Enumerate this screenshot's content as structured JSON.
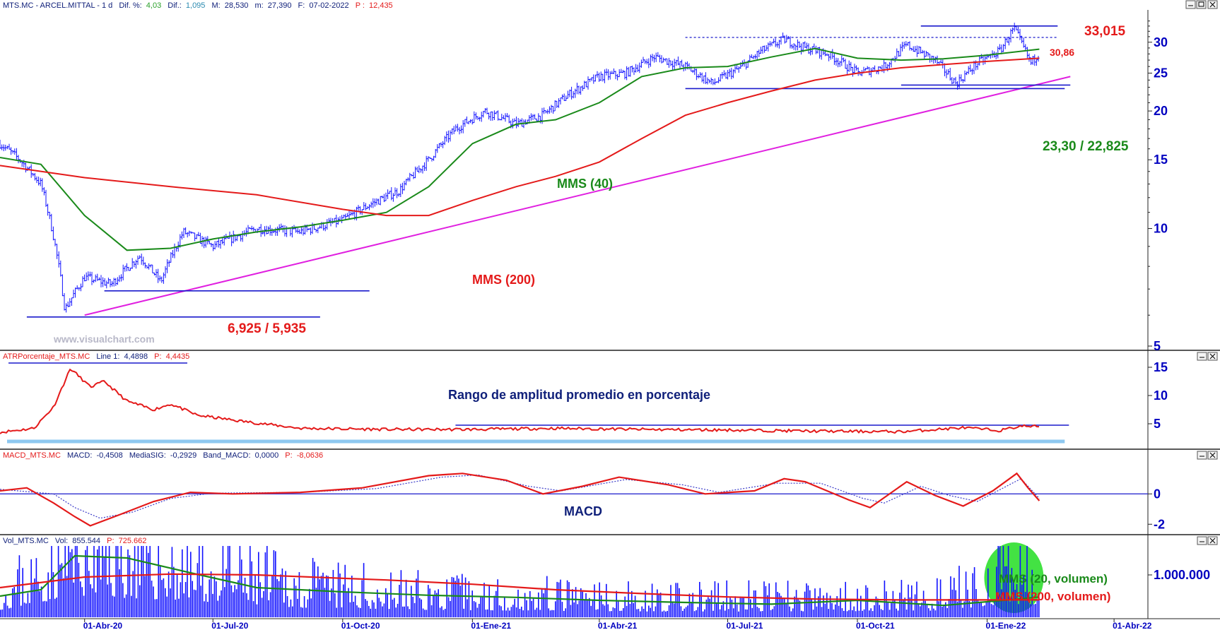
{
  "colors": {
    "price": "#1010ff",
    "ma_fast": "#1a8a1a",
    "ma_slow": "#e41a1a",
    "trend": "#e020e0",
    "level": "#1a1acc",
    "red_text": "#e41a1a",
    "green_text": "#1a8a1a",
    "navy_text": "#10207a",
    "axis_text": "#0000c0",
    "atr_band": "#8ec8f0",
    "highlight": "#22dd22"
  },
  "headers": {
    "price": {
      "symbol": "MTS.MC - ARCEL.MITTAL - 1 d",
      "dif_pct_label": "Dif. %:",
      "dif_pct": "4,03",
      "dif_label": "Dif.:",
      "dif": "1,095",
      "m_label": "M:",
      "m": "28,530",
      "min_label": "m:",
      "min": "27,390",
      "f_label": "F:",
      "f": "07-02-2022",
      "p_label": "P :",
      "p": "12,435"
    },
    "atr": {
      "name": "ATRPorcentaje_MTS.MC",
      "line_label": "Line 1:",
      "line": "4,4898",
      "p_label": "P:",
      "p": "4,4435"
    },
    "macd": {
      "name": "MACD_MTS.MC",
      "macd_label": "MACD:",
      "macd": "-0,4508",
      "sig_label": "MediaSIG:",
      "sig": "-0,2929",
      "band_label": "Band_MACD:",
      "band": "0,0000",
      "p_label": "P:",
      "p": "-8,0636"
    },
    "vol": {
      "name": "Vol_MTS.MC",
      "vol_label": "Vol:",
      "vol": "855.544",
      "p_label": "P:",
      "p": "725.662"
    }
  },
  "annotations": {
    "high": "33,015",
    "level_mid": "30,86",
    "support": "23,30 / 22,825",
    "low": "6,925 / 5,935",
    "ma40": "MMS (40)",
    "ma200": "MMS (200)",
    "watermark": "www.visualchart.com",
    "atr_title": "Rango de amplitud promedio en porcentaje",
    "macd_title": "MACD",
    "vol_ma20": "MMS (20, volumen)",
    "vol_ma200": "MMS (200, volumen)"
  },
  "chart_data": [
    {
      "type": "line",
      "panel": "price",
      "scale": "log",
      "ylim": [
        5,
        36
      ],
      "yticks": [
        "5",
        "10",
        "15",
        "20",
        "25",
        "30"
      ],
      "x_labels": [
        "01-Abr-20",
        "01-Jul-20",
        "01-Oct-20",
        "01-Ene-21",
        "01-Abr-21",
        "01-Jul-21",
        "01-Oct-21",
        "01-Ene-22",
        "01-Abr-22"
      ],
      "x_range": [
        "2020-02-01",
        "2022-04-25"
      ],
      "series": [
        {
          "name": "MMS (40)",
          "points": [
            [
              "2020-02-01",
              15.2
            ],
            [
              "2020-03-01",
              14.6
            ],
            [
              "2020-04-01",
              10.8
            ],
            [
              "2020-05-01",
              8.8
            ],
            [
              "2020-06-01",
              8.9
            ],
            [
              "2020-07-01",
              9.4
            ],
            [
              "2020-08-01",
              9.8
            ],
            [
              "2020-09-01",
              10.1
            ],
            [
              "2020-10-01",
              10.5
            ],
            [
              "2020-11-01",
              11.0
            ],
            [
              "2020-12-01",
              12.8
            ],
            [
              "2021-01-01",
              16.5
            ],
            [
              "2021-02-01",
              18.5
            ],
            [
              "2021-03-01",
              19.0
            ],
            [
              "2021-04-01",
              21.0
            ],
            [
              "2021-05-01",
              24.5
            ],
            [
              "2021-06-01",
              25.8
            ],
            [
              "2021-07-01",
              26.0
            ],
            [
              "2021-08-01",
              27.5
            ],
            [
              "2021-09-01",
              28.9
            ],
            [
              "2021-10-01",
              27.3
            ],
            [
              "2021-11-01",
              27.0
            ],
            [
              "2021-12-01",
              27.2
            ],
            [
              "2022-01-01",
              27.8
            ],
            [
              "2022-02-07",
              28.8
            ]
          ]
        },
        {
          "name": "MMS (200)",
          "points": [
            [
              "2020-02-01",
              14.5
            ],
            [
              "2020-04-01",
              13.5
            ],
            [
              "2020-06-01",
              12.8
            ],
            [
              "2020-08-01",
              12.2
            ],
            [
              "2020-10-01",
              11.2
            ],
            [
              "2020-11-01",
              10.8
            ],
            [
              "2020-12-01",
              10.8
            ],
            [
              "2021-01-01",
              11.8
            ],
            [
              "2021-02-01",
              12.8
            ],
            [
              "2021-03-01",
              13.6
            ],
            [
              "2021-04-01",
              14.8
            ],
            [
              "2021-05-01",
              17.0
            ],
            [
              "2021-06-01",
              19.5
            ],
            [
              "2021-07-01",
              21.0
            ],
            [
              "2021-08-01",
              22.5
            ],
            [
              "2021-09-01",
              24.0
            ],
            [
              "2021-10-01",
              25.0
            ],
            [
              "2021-11-01",
              25.8
            ],
            [
              "2021-12-01",
              26.3
            ],
            [
              "2022-01-01",
              26.8
            ],
            [
              "2022-02-07",
              27.3
            ]
          ]
        }
      ],
      "price_path": [
        [
          "2020-02-01",
          16.5
        ],
        [
          "2020-02-15",
          15.0
        ],
        [
          "2020-03-01",
          13.0
        ],
        [
          "2020-03-10",
          9.5
        ],
        [
          "2020-03-18",
          6.2
        ],
        [
          "2020-04-01",
          7.5
        ],
        [
          "2020-04-20",
          7.2
        ],
        [
          "2020-05-10",
          8.5
        ],
        [
          "2020-05-25",
          7.3
        ],
        [
          "2020-06-10",
          9.8
        ],
        [
          "2020-07-01",
          9.0
        ],
        [
          "2020-08-01",
          10.0
        ],
        [
          "2020-09-01",
          9.8
        ],
        [
          "2020-10-01",
          10.5
        ],
        [
          "2020-10-20",
          11.5
        ],
        [
          "2020-11-10",
          12.5
        ],
        [
          "2020-12-01",
          15.0
        ],
        [
          "2020-12-20",
          18.0
        ],
        [
          "2021-01-10",
          20.0
        ],
        [
          "2021-02-01",
          18.5
        ],
        [
          "2021-02-20",
          19.5
        ],
        [
          "2021-03-10",
          22.0
        ],
        [
          "2021-04-01",
          24.5
        ],
        [
          "2021-04-20",
          25.0
        ],
        [
          "2021-05-10",
          27.5
        ],
        [
          "2021-06-01",
          26.0
        ],
        [
          "2021-06-20",
          23.5
        ],
        [
          "2021-07-10",
          25.8
        ],
        [
          "2021-07-25",
          28.5
        ],
        [
          "2021-08-10",
          30.5
        ],
        [
          "2021-08-25",
          29.0
        ],
        [
          "2021-09-10",
          28.0
        ],
        [
          "2021-10-01",
          25.0
        ],
        [
          "2021-10-20",
          26.0
        ],
        [
          "2021-11-05",
          29.5
        ],
        [
          "2021-11-25",
          27.0
        ],
        [
          "2021-12-10",
          23.5
        ],
        [
          "2021-12-25",
          26.5
        ],
        [
          "2022-01-10",
          28.5
        ],
        [
          "2022-01-20",
          32.5
        ],
        [
          "2022-01-27",
          29.0
        ],
        [
          "2022-02-01",
          26.5
        ],
        [
          "2022-02-07",
          28.2
        ]
      ],
      "levels": [
        {
          "value": 33.015,
          "label": "33,015",
          "from": "2021-11-15",
          "to": "2022-02-20",
          "style": "solid"
        },
        {
          "value": 30.86,
          "label": "30,86",
          "from": "2021-06-01",
          "to": "2022-02-20",
          "style": "dashed"
        },
        {
          "value": 23.3,
          "label": "23,30 / 22,825",
          "from": "2021-11-01",
          "to": "2022-03-01",
          "style": "solid"
        },
        {
          "value": 22.825,
          "from": "2021-06-01",
          "to": "2022-02-25",
          "style": "solid"
        },
        {
          "value": 6.925,
          "label": "6,925 / 5,935",
          "from": "2020-04-15",
          "to": "2020-10-20",
          "style": "solid"
        },
        {
          "value": 5.935,
          "from": "2020-02-20",
          "to": "2020-09-15",
          "style": "solid"
        }
      ],
      "trendline": {
        "from": [
          "2020-04-01",
          6.0
        ],
        "to": [
          "2022-03-01",
          24.5
        ]
      }
    },
    {
      "type": "line",
      "panel": "atr",
      "title": "Rango de amplitud promedio en porcentaje",
      "ylim": [
        1,
        16
      ],
      "yticks": [
        "5",
        "10",
        "15"
      ],
      "series": [
        {
          "name": "ATRPorcentaje_MTS.MC",
          "points": [
            [
              "2020-02-01",
              3.5
            ],
            [
              "2020-02-25",
              4.2
            ],
            [
              "2020-03-10",
              8.0
            ],
            [
              "2020-03-22",
              14.8
            ],
            [
              "2020-04-05",
              11.5
            ],
            [
              "2020-04-15",
              12.5
            ],
            [
              "2020-05-01",
              9.0
            ],
            [
              "2020-05-20",
              7.5
            ],
            [
              "2020-06-01",
              8.5
            ],
            [
              "2020-06-20",
              6.5
            ],
            [
              "2020-07-20",
              5.5
            ],
            [
              "2020-09-01",
              4.2
            ],
            [
              "2020-11-01",
              4.0
            ],
            [
              "2021-01-01",
              4.0
            ],
            [
              "2021-03-01",
              4.2
            ],
            [
              "2021-05-01",
              4.0
            ],
            [
              "2021-07-01",
              3.9
            ],
            [
              "2021-09-01",
              3.7
            ],
            [
              "2021-11-01",
              3.6
            ],
            [
              "2021-12-15",
              4.3
            ],
            [
              "2022-01-10",
              3.8
            ],
            [
              "2022-01-25",
              4.6
            ],
            [
              "2022-02-07",
              4.4898
            ]
          ]
        }
      ],
      "level": 4.75
    },
    {
      "type": "line",
      "panel": "macd",
      "title": "MACD",
      "ylim": [
        -2.5,
        2.2
      ],
      "yticks": [
        "-2",
        "0"
      ],
      "series": [
        {
          "name": "MACD",
          "points": [
            [
              "2020-02-01",
              0.2
            ],
            [
              "2020-02-20",
              0.4
            ],
            [
              "2020-03-10",
              -0.6
            ],
            [
              "2020-03-25",
              -1.5
            ],
            [
              "2020-04-05",
              -2.1
            ],
            [
              "2020-04-25",
              -1.4
            ],
            [
              "2020-05-20",
              -0.5
            ],
            [
              "2020-06-15",
              0.1
            ],
            [
              "2020-07-15",
              0.0
            ],
            [
              "2020-09-01",
              0.1
            ],
            [
              "2020-10-15",
              0.4
            ],
            [
              "2020-12-01",
              1.2
            ],
            [
              "2020-12-25",
              1.35
            ],
            [
              "2021-01-25",
              0.9
            ],
            [
              "2021-02-20",
              0.0
            ],
            [
              "2021-03-20",
              0.5
            ],
            [
              "2021-04-15",
              1.1
            ],
            [
              "2021-05-20",
              0.6
            ],
            [
              "2021-06-15",
              0.0
            ],
            [
              "2021-07-20",
              0.2
            ],
            [
              "2021-08-10",
              1.0
            ],
            [
              "2021-08-25",
              0.8
            ],
            [
              "2021-09-25",
              -0.4
            ],
            [
              "2021-10-10",
              -0.9
            ],
            [
              "2021-11-05",
              0.8
            ],
            [
              "2021-11-25",
              -0.1
            ],
            [
              "2021-12-15",
              -0.8
            ],
            [
              "2022-01-05",
              0.2
            ],
            [
              "2022-01-22",
              1.35
            ],
            [
              "2022-01-30",
              0.4
            ],
            [
              "2022-02-07",
              -0.4508
            ]
          ]
        },
        {
          "name": "MediaSIG",
          "points": [
            [
              "2020-02-01",
              0.3
            ],
            [
              "2020-03-10",
              0.0
            ],
            [
              "2020-03-25",
              -0.9
            ],
            [
              "2020-04-12",
              -1.6
            ],
            [
              "2020-05-05",
              -1.2
            ],
            [
              "2020-06-01",
              -0.3
            ],
            [
              "2020-07-01",
              0.05
            ],
            [
              "2020-09-01",
              0.1
            ],
            [
              "2020-10-25",
              0.35
            ],
            [
              "2020-12-10",
              1.1
            ],
            [
              "2021-01-05",
              1.25
            ],
            [
              "2021-02-10",
              0.5
            ],
            [
              "2021-03-05",
              0.2
            ],
            [
              "2021-04-20",
              0.95
            ],
            [
              "2021-05-30",
              0.6
            ],
            [
              "2021-06-25",
              0.1
            ],
            [
              "2021-08-05",
              0.7
            ],
            [
              "2021-09-05",
              0.7
            ],
            [
              "2021-10-05",
              -0.3
            ],
            [
              "2021-10-20",
              -0.6
            ],
            [
              "2021-11-15",
              0.5
            ],
            [
              "2021-12-05",
              -0.1
            ],
            [
              "2021-12-25",
              -0.5
            ],
            [
              "2022-01-25",
              1.0
            ],
            [
              "2022-02-07",
              -0.2929
            ]
          ]
        }
      ],
      "band": 0
    },
    {
      "type": "bar",
      "panel": "volume",
      "ylim": [
        0,
        1700000
      ],
      "yticks": [
        "1.000.000"
      ],
      "profile": [
        [
          "2020-02-01",
          500000
        ],
        [
          "2020-03-01",
          950000
        ],
        [
          "2020-03-20",
          1500000
        ],
        [
          "2020-05-01",
          1300000
        ],
        [
          "2020-07-01",
          1000000
        ],
        [
          "2020-09-01",
          650000
        ],
        [
          "2020-12-01",
          500000
        ],
        [
          "2021-03-01",
          430000
        ],
        [
          "2021-06-01",
          380000
        ],
        [
          "2021-09-01",
          400000
        ],
        [
          "2021-12-01",
          450000
        ],
        [
          "2022-01-15",
          900000
        ],
        [
          "2022-02-07",
          855544
        ]
      ],
      "series": [
        {
          "name": "MMS (20, volumen)",
          "points": [
            [
              "2020-02-01",
              500000
            ],
            [
              "2020-03-01",
              650000
            ],
            [
              "2020-03-25",
              1450000
            ],
            [
              "2020-05-01",
              1400000
            ],
            [
              "2020-06-15",
              1050000
            ],
            [
              "2020-08-01",
              700000
            ],
            [
              "2020-10-01",
              600000
            ],
            [
              "2020-12-01",
              520000
            ],
            [
              "2021-02-01",
              470000
            ],
            [
              "2021-04-01",
              400000
            ],
            [
              "2021-06-01",
              350000
            ],
            [
              "2021-08-01",
              310000
            ],
            [
              "2021-10-01",
              400000
            ],
            [
              "2021-12-01",
              280000
            ],
            [
              "2022-01-20",
              420000
            ],
            [
              "2022-02-07",
              480000
            ]
          ]
        },
        {
          "name": "MMS (200, volumen)",
          "points": [
            [
              "2020-02-01",
              700000
            ],
            [
              "2020-04-01",
              950000
            ],
            [
              "2020-06-01",
              1020000
            ],
            [
              "2020-08-01",
              1000000
            ],
            [
              "2020-11-01",
              880000
            ],
            [
              "2021-01-01",
              780000
            ],
            [
              "2021-03-01",
              650000
            ],
            [
              "2021-05-01",
              560000
            ],
            [
              "2021-07-01",
              480000
            ],
            [
              "2021-09-01",
              430000
            ],
            [
              "2021-11-01",
              410000
            ],
            [
              "2022-02-07",
              410000
            ]
          ]
        }
      ]
    }
  ]
}
